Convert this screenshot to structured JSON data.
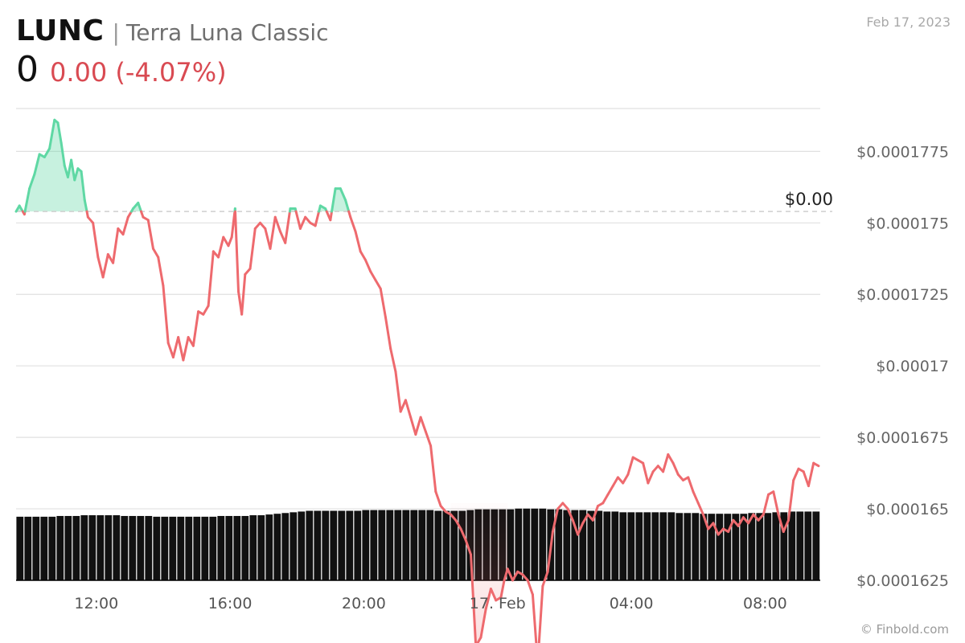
{
  "header": {
    "ticker": "LUNC",
    "separator": "|",
    "name": "Terra Luna Classic",
    "price": "0",
    "change": "0.00 (-4.07%)",
    "date": "Feb 17, 2023"
  },
  "footer": {
    "credit": "© Finbold.com"
  },
  "colors": {
    "up": "#5fd8a4",
    "down": "#ee6a6e",
    "grid": "#e0e0e0",
    "volume": "#111111",
    "ref_line": "#cfcfcf"
  },
  "chart_data": {
    "type": "line",
    "title": "LUNC",
    "y_ticks": [
      {
        "value": 0.0001625,
        "label": "$0.0001625"
      },
      {
        "value": 0.000165,
        "label": "$0.000165"
      },
      {
        "value": 0.0001675,
        "label": "$0.0001675"
      },
      {
        "value": 0.00017,
        "label": "$0.00017"
      },
      {
        "value": 0.0001725,
        "label": "$0.0001725"
      },
      {
        "value": 0.000175,
        "label": "$0.000175"
      },
      {
        "value": 0.0001775,
        "label": "$0.0001775"
      }
    ],
    "x_ticks": [
      {
        "hour": 12,
        "label": "12:00"
      },
      {
        "hour": 16,
        "label": "16:00"
      },
      {
        "hour": 20,
        "label": "20:00"
      },
      {
        "hour": 24,
        "label": "17. Feb"
      },
      {
        "hour": 28,
        "label": "04:00"
      },
      {
        "hour": 32,
        "label": "08:00"
      }
    ],
    "x_range_hours": [
      9.6,
      33.65
    ],
    "y_range": [
      0.0001625,
      0.000179
    ],
    "reference": {
      "value": 0.0001754,
      "label": "$0.00"
    },
    "grid": true,
    "price_series": {
      "x_hours": [
        9.6,
        9.7,
        9.85,
        10.0,
        10.15,
        10.3,
        10.45,
        10.6,
        10.75,
        10.85,
        10.95,
        11.05,
        11.15,
        11.25,
        11.35,
        11.45,
        11.55,
        11.65,
        11.75,
        11.9,
        12.05,
        12.2,
        12.35,
        12.5,
        12.65,
        12.8,
        12.95,
        13.1,
        13.25,
        13.4,
        13.55,
        13.7,
        13.85,
        14.0,
        14.15,
        14.3,
        14.45,
        14.6,
        14.75,
        14.9,
        15.05,
        15.2,
        15.35,
        15.5,
        15.65,
        15.8,
        15.95,
        16.05,
        16.15,
        16.25,
        16.35,
        16.45,
        16.6,
        16.75,
        16.9,
        17.05,
        17.2,
        17.35,
        17.5,
        17.65,
        17.8,
        17.95,
        18.1,
        18.25,
        18.4,
        18.55,
        18.7,
        18.85,
        19.0,
        19.15,
        19.3,
        19.45,
        19.6,
        19.75,
        19.9,
        20.05,
        20.2,
        20.35,
        20.5,
        20.65,
        20.8,
        20.95,
        21.1,
        21.25,
        21.4,
        21.55,
        21.7,
        21.85,
        22.0,
        22.15,
        22.3,
        22.45,
        22.6,
        22.75,
        22.9,
        23.05,
        23.2,
        23.35,
        23.5,
        23.65,
        23.8,
        23.95,
        24.1,
        24.2,
        24.3,
        24.45,
        24.6,
        24.75,
        24.9,
        25.05,
        25.2,
        25.35,
        25.5,
        25.65,
        25.8,
        25.95,
        26.1,
        26.25,
        26.4,
        26.55,
        26.7,
        26.85,
        27.0,
        27.15,
        27.3,
        27.45,
        27.6,
        27.75,
        27.9,
        28.05,
        28.2,
        28.35,
        28.5,
        28.65,
        28.8,
        28.95,
        29.1,
        29.25,
        29.4,
        29.55,
        29.7,
        29.85,
        30.0,
        30.15,
        30.3,
        30.45,
        30.6,
        30.75,
        30.9,
        31.05,
        31.2,
        31.35,
        31.5,
        31.65,
        31.8,
        31.95,
        32.1,
        32.25,
        32.4,
        32.55,
        32.7,
        32.85,
        33.0,
        33.15,
        33.3,
        33.45,
        33.6
      ],
      "values": [
        0.0001754,
        0.0001756,
        0.0001753,
        0.0001762,
        0.0001767,
        0.0001774,
        0.0001773,
        0.0001776,
        0.0001786,
        0.0001785,
        0.0001778,
        0.000177,
        0.0001766,
        0.0001772,
        0.0001765,
        0.0001769,
        0.0001768,
        0.0001758,
        0.0001752,
        0.000175,
        0.0001738,
        0.0001731,
        0.0001739,
        0.0001736,
        0.0001748,
        0.0001746,
        0.0001752,
        0.0001755,
        0.0001757,
        0.0001752,
        0.0001751,
        0.0001741,
        0.0001738,
        0.0001728,
        0.0001708,
        0.0001703,
        0.000171,
        0.0001702,
        0.000171,
        0.0001707,
        0.0001719,
        0.0001718,
        0.0001721,
        0.000174,
        0.0001738,
        0.0001745,
        0.0001742,
        0.0001745,
        0.0001755,
        0.0001726,
        0.0001718,
        0.0001732,
        0.0001734,
        0.0001748,
        0.000175,
        0.0001748,
        0.0001741,
        0.0001752,
        0.0001747,
        0.0001743,
        0.0001755,
        0.0001755,
        0.0001748,
        0.0001752,
        0.000175,
        0.0001749,
        0.0001756,
        0.0001755,
        0.0001751,
        0.0001762,
        0.0001762,
        0.0001758,
        0.0001752,
        0.0001747,
        0.000174,
        0.0001737,
        0.0001733,
        0.000173,
        0.0001727,
        0.0001717,
        0.0001706,
        0.0001698,
        0.0001684,
        0.0001688,
        0.0001682,
        0.0001676,
        0.0001682,
        0.0001677,
        0.0001672,
        0.0001656,
        0.0001651,
        0.0001649,
        0.0001648,
        0.0001646,
        0.0001643,
        0.0001639,
        0.0001634,
        0.0001602,
        0.0001605,
        0.0001615,
        0.0001622,
        0.0001618,
        0.0001619,
        0.0001625,
        0.0001629,
        0.0001625,
        0.0001628,
        0.0001627,
        0.0001625,
        0.000162,
        0.0001596,
        0.0001623,
        0.0001628,
        0.0001642,
        0.000165,
        0.0001652,
        0.000165,
        0.0001646,
        0.0001641,
        0.0001645,
        0.0001648,
        0.0001646,
        0.0001651,
        0.0001652,
        0.0001655,
        0.0001658,
        0.0001661,
        0.0001659,
        0.0001662,
        0.0001668,
        0.0001667,
        0.0001666,
        0.0001659,
        0.0001663,
        0.0001665,
        0.0001663,
        0.0001669,
        0.0001666,
        0.0001662,
        0.000166,
        0.0001661,
        0.0001656,
        0.0001652,
        0.0001648,
        0.0001643,
        0.0001645,
        0.0001641,
        0.0001643,
        0.0001642,
        0.0001646,
        0.0001644,
        0.0001647,
        0.0001645,
        0.0001648,
        0.0001646,
        0.0001648,
        0.0001655,
        0.0001656,
        0.0001648,
        0.0001642,
        0.0001646,
        0.000166,
        0.0001664,
        0.0001663,
        0.0001658,
        0.0001666,
        0.0001665
      ]
    },
    "volume_series": {
      "note_units": "relative",
      "values": [
        0.86,
        0.86,
        0.86,
        0.86,
        0.86,
        0.87,
        0.87,
        0.87,
        0.88,
        0.88,
        0.88,
        0.88,
        0.88,
        0.87,
        0.87,
        0.87,
        0.87,
        0.86,
        0.86,
        0.86,
        0.86,
        0.86,
        0.86,
        0.86,
        0.86,
        0.87,
        0.87,
        0.87,
        0.87,
        0.88,
        0.88,
        0.89,
        0.9,
        0.91,
        0.92,
        0.93,
        0.94,
        0.94,
        0.94,
        0.94,
        0.94,
        0.94,
        0.94,
        0.95,
        0.95,
        0.95,
        0.95,
        0.95,
        0.95,
        0.95,
        0.95,
        0.95,
        0.94,
        0.94,
        0.94,
        0.94,
        0.95,
        0.96,
        0.96,
        0.96,
        0.96,
        0.96,
        0.97,
        0.97,
        0.97,
        0.97,
        0.96,
        0.96,
        0.95,
        0.95,
        0.95,
        0.94,
        0.94,
        0.93,
        0.93,
        0.92,
        0.92,
        0.92,
        0.92,
        0.92,
        0.92,
        0.92,
        0.91,
        0.91,
        0.91,
        0.9,
        0.9,
        0.9,
        0.9,
        0.9,
        0.9,
        0.91,
        0.91,
        0.91,
        0.92,
        0.92,
        0.93,
        0.93,
        0.93,
        0.93
      ]
    }
  }
}
